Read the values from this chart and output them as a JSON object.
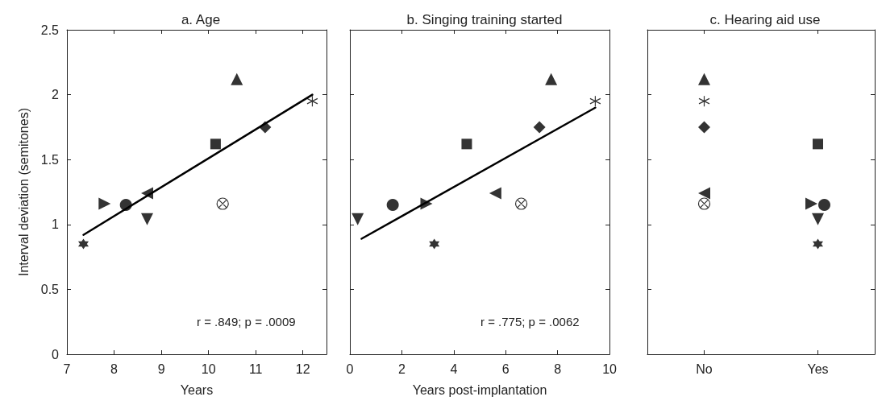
{
  "chart_data": [
    {
      "type": "scatter",
      "title": "a. Age",
      "xlabel": "Years",
      "ylabel": "Interval deviation (semitones)",
      "xlim": [
        7,
        12.5
      ],
      "xticks": [
        7,
        8,
        9,
        10,
        11,
        12
      ],
      "ylim": [
        0,
        2.5
      ],
      "yticks": [
        0,
        0.5,
        1,
        1.5,
        2,
        2.5
      ],
      "grid": false,
      "annotations": [
        "r = .849; p = .0009"
      ],
      "series": [
        {
          "color": "#000000",
          "marker": "star",
          "x": [
            7.35
          ],
          "values": [
            0.85
          ]
        },
        {
          "color": "#000000",
          "marker": "triangle-right",
          "x": [
            7.8
          ],
          "values": [
            1.16
          ]
        },
        {
          "color": "#000000",
          "marker": "circle",
          "x": [
            8.25
          ],
          "values": [
            1.15
          ]
        },
        {
          "color": "#000000",
          "marker": "triangle-left",
          "x": [
            8.7
          ],
          "values": [
            1.24
          ]
        },
        {
          "color": "#000000",
          "marker": "triangle-down",
          "x": [
            8.7
          ],
          "values": [
            1.04
          ]
        },
        {
          "color": "#000000",
          "marker": "square",
          "x": [
            10.15
          ],
          "values": [
            1.62
          ]
        },
        {
          "color": "#000000",
          "x": [
            10.3
          ],
          "values": [
            1.16
          ]
        },
        {
          "color": "#000000",
          "marker": "triangle",
          "x": [
            10.6
          ],
          "values": [
            2.12
          ]
        },
        {
          "color": "#000000",
          "marker": "diamond",
          "x": [
            11.2
          ],
          "values": [
            1.75
          ]
        },
        {
          "color": "#000000",
          "marker": "cross",
          "x": [
            12.2
          ],
          "values": [
            1.95
          ]
        },
        {
          "type": "line",
          "color": "#000000",
          "marker": "none",
          "x": [
            7.35,
            12.2
          ],
          "values": [
            0.92,
            2.0
          ]
        }
      ]
    },
    {
      "type": "scatter",
      "title": "b. Singing training started",
      "xlabel": "Years post-implantation",
      "xlim": [
        0,
        10
      ],
      "xticks": [
        0,
        2,
        4,
        6,
        8,
        10
      ],
      "ylim": [
        0,
        2.5
      ],
      "yticks": [
        0,
        0.5,
        1,
        1.5,
        2,
        2.5
      ],
      "tick_labels": "x",
      "grid": false,
      "annotations": [
        "r = .775; p = .0062"
      ],
      "series": [
        {
          "color": "#000000",
          "marker": "triangle-down",
          "x": [
            0.3
          ],
          "values": [
            1.04
          ]
        },
        {
          "color": "#000000",
          "marker": "circle",
          "x": [
            1.65
          ],
          "values": [
            1.15
          ]
        },
        {
          "color": "#000000",
          "marker": "triangle-right",
          "x": [
            2.95
          ],
          "values": [
            1.16
          ]
        },
        {
          "color": "#000000",
          "marker": "star",
          "x": [
            3.25
          ],
          "values": [
            0.85
          ]
        },
        {
          "color": "#000000",
          "marker": "square",
          "x": [
            4.5
          ],
          "values": [
            1.62
          ]
        },
        {
          "color": "#000000",
          "marker": "triangle-left",
          "x": [
            5.6
          ],
          "values": [
            1.24
          ]
        },
        {
          "color": "#000000",
          "x": [
            6.6
          ],
          "values": [
            1.16
          ]
        },
        {
          "color": "#000000",
          "marker": "diamond",
          "x": [
            7.3
          ],
          "values": [
            1.75
          ]
        },
        {
          "color": "#000000",
          "marker": "triangle",
          "x": [
            7.75
          ],
          "values": [
            2.12
          ]
        },
        {
          "color": "#000000",
          "marker": "cross",
          "x": [
            9.45
          ],
          "values": [
            1.95
          ]
        },
        {
          "type": "line",
          "color": "#000000",
          "marker": "none",
          "x": [
            0.45,
            9.45
          ],
          "values": [
            0.89,
            1.9
          ]
        }
      ]
    },
    {
      "type": "scatter",
      "title": "c. Hearing aid use",
      "categories": [
        "No",
        "Yes"
      ],
      "ylim": [
        0,
        2.5
      ],
      "yticks": [
        0,
        0.5,
        1,
        1.5,
        2,
        2.5
      ],
      "tick_labels": "x",
      "grid": false,
      "series": [
        {
          "color": "#000000",
          "marker": "triangle",
          "x": [
            "No"
          ],
          "values": [
            2.12
          ]
        },
        {
          "color": "#000000",
          "marker": "cross",
          "x": [
            "No"
          ],
          "values": [
            1.95
          ]
        },
        {
          "color": "#000000",
          "marker": "diamond",
          "x": [
            "No"
          ],
          "values": [
            1.75
          ]
        },
        {
          "color": "#000000",
          "marker": "triangle-left",
          "x": [
            "No"
          ],
          "values": [
            1.24
          ]
        },
        {
          "color": "#000000",
          "x": [
            "No"
          ],
          "values": [
            1.16
          ]
        },
        {
          "color": "#000000",
          "marker": "square",
          "x": [
            "Yes"
          ],
          "values": [
            1.62
          ]
        },
        {
          "color": "#000000",
          "marker": "triangle-right",
          "x": [
            "Yes"
          ],
          "values": [
            1.16
          ]
        },
        {
          "color": "#000000",
          "marker": "circle",
          "x": [
            "Yes"
          ],
          "values": [
            1.15
          ]
        },
        {
          "color": "#000000",
          "marker": "triangle-down",
          "x": [
            "Yes"
          ],
          "values": [
            1.04
          ]
        },
        {
          "color": "#000000",
          "marker": "star",
          "x": [
            "Yes"
          ],
          "values": [
            0.85
          ]
        }
      ]
    }
  ]
}
